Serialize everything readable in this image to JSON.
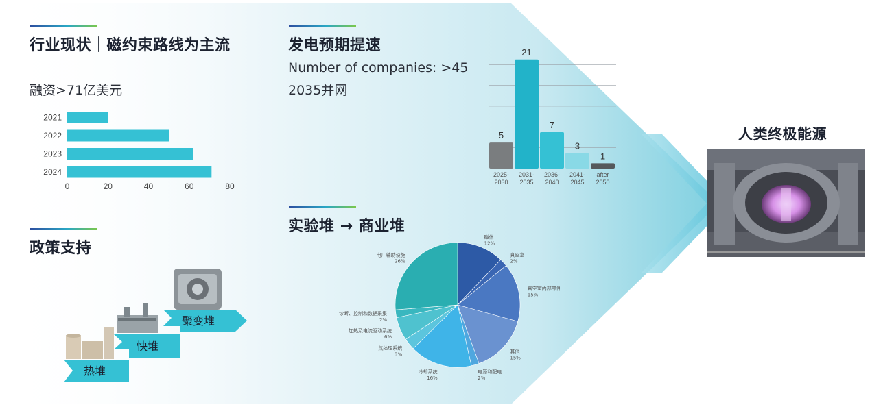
{
  "colors": {
    "teal": "#35c1d4",
    "gray": "#7a7d7f",
    "light_teal": "#89d9e6",
    "dark_gray": "#55585b",
    "panel_blue": "#dff2f7"
  },
  "market": {
    "title": "行业现状｜磁约束路线为主流",
    "subtitle": "融资>71亿美元"
  },
  "policy": {
    "title": "政策支持",
    "stairs": [
      "热堆",
      "快堆",
      "聚变堆"
    ]
  },
  "power": {
    "title": "发电预期提速",
    "line1": "Number of companies: >45",
    "line2": "2035并网"
  },
  "reactor": {
    "title": "实验堆 → 商业堆"
  },
  "energy": {
    "title": "人类终极能源",
    "image": "tokamak-interior"
  },
  "chart_data": [
    {
      "type": "bar",
      "orientation": "horizontal",
      "categories": [
        "2021",
        "2022",
        "2023",
        "2024"
      ],
      "values": [
        20,
        50,
        62,
        71
      ],
      "xlim": [
        0,
        80
      ],
      "xticks": [
        "0",
        "20",
        "40",
        "60",
        "80"
      ]
    },
    {
      "type": "bar",
      "categories": [
        [
          "2025-",
          "2030"
        ],
        [
          "2031-",
          "2035"
        ],
        [
          "2036-",
          "2040"
        ],
        [
          "2041-",
          "2045"
        ],
        [
          "after",
          "2050"
        ]
      ],
      "values": [
        5,
        21,
        7,
        3,
        1
      ],
      "colors": [
        "#7a7d7f",
        "#22b3c9",
        "#35c1d4",
        "#89d9e6",
        "#55585b"
      ],
      "ylim": [
        0,
        24
      ],
      "grid": true
    },
    {
      "type": "pie",
      "slices": [
        {
          "label": "磁体",
          "pct": "12%",
          "value": 12,
          "color": "#2d5aa6"
        },
        {
          "label": "真空室",
          "pct": "2%",
          "value": 2,
          "color": "#3a66b3"
        },
        {
          "label": "真空室内部部件",
          "pct": "15%",
          "value": 15,
          "color": "#4a78c2"
        },
        {
          "label": "其他",
          "pct": "15%",
          "value": 15,
          "color": "#6a92d0"
        },
        {
          "label": "电源和配电",
          "pct": "2%",
          "value": 2,
          "color": "#4fa7df"
        },
        {
          "label": "冷却系统",
          "pct": "16%",
          "value": 16,
          "color": "#3fb4e8"
        },
        {
          "label": "氚处理系统",
          "pct": "3%",
          "value": 3,
          "color": "#5cc5dd"
        },
        {
          "label": "加热及电流驱动系统",
          "pct": "6%",
          "value": 6,
          "color": "#4fc2cf"
        },
        {
          "label": "诊断、控制和数据采集",
          "pct": "2%",
          "value": 2,
          "color": "#39b7bf"
        },
        {
          "label": "电厂辅助设施",
          "pct": "26%",
          "value": 26,
          "color": "#2aaeb1"
        }
      ]
    }
  ]
}
